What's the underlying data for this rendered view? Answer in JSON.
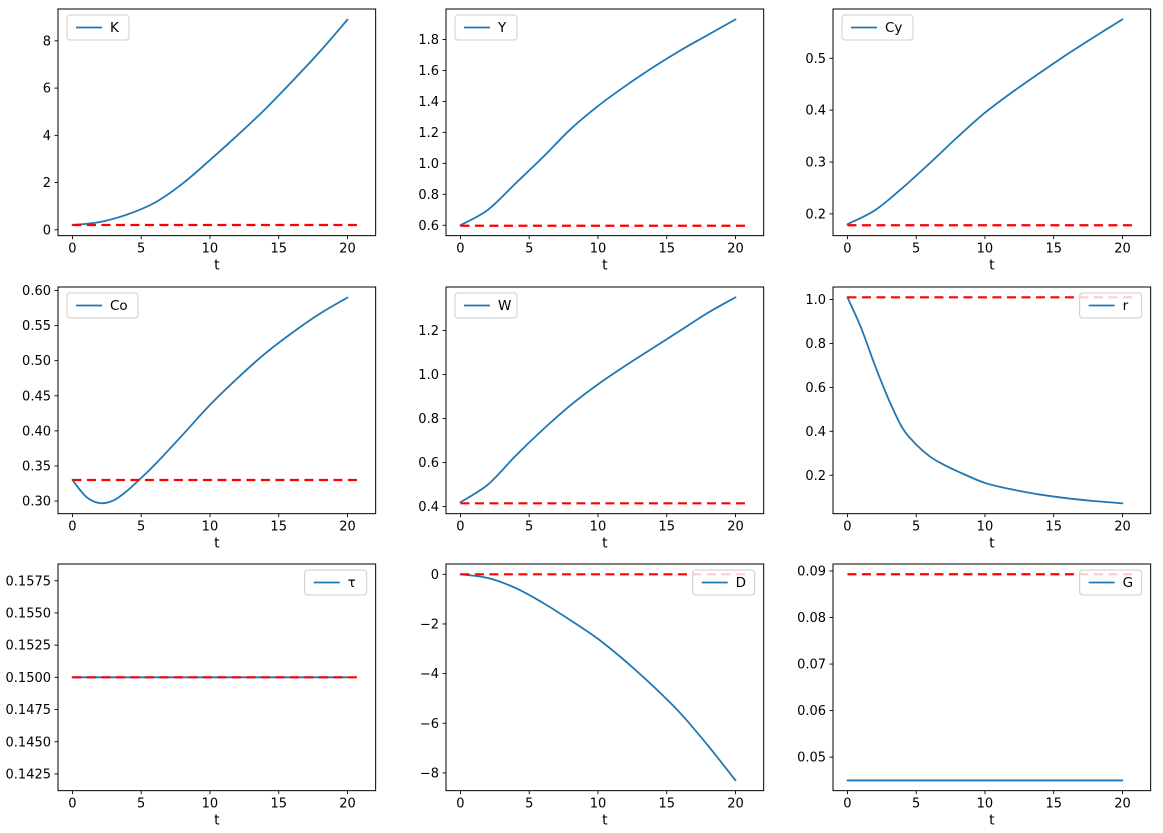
{
  "figure": {
    "background": "#ffffff",
    "grid": "3x3 subplots",
    "xlabel": "t"
  },
  "colors": {
    "series_line": "#1f77b4",
    "steady_state_line": "#ff0000",
    "axes_frame": "#000000",
    "legend_border": "#cccccc",
    "legend_fill": "rgba(255,255,255,0.8)",
    "text": "#000000"
  },
  "chart_data": [
    {
      "type": "line",
      "label": "K",
      "legend_position": "upper left",
      "xlabel": "t",
      "grid": false,
      "x": [
        0,
        2,
        4,
        6,
        8,
        10,
        12,
        14,
        16,
        18,
        20
      ],
      "y": [
        0.2,
        0.33,
        0.65,
        1.15,
        1.95,
        2.95,
        4.0,
        5.1,
        6.3,
        7.55,
        8.9
      ],
      "steady_value": 0.2,
      "steady_x": [
        0,
        21
      ],
      "xlim": [
        -1.05,
        22.05
      ],
      "ylim": [
        -0.25,
        9.35
      ],
      "xticks": [
        0,
        5,
        10,
        15,
        20
      ],
      "xtick_labels": [
        "0",
        "5",
        "10",
        "15",
        "20"
      ],
      "yticks": [
        0,
        2,
        4,
        6,
        8
      ],
      "ytick_labels": [
        "0",
        "2",
        "4",
        "6",
        "8"
      ]
    },
    {
      "type": "line",
      "label": "Y",
      "legend_position": "upper left",
      "xlabel": "t",
      "grid": false,
      "x": [
        0,
        2,
        4,
        6,
        8,
        10,
        12,
        14,
        16,
        18,
        20
      ],
      "y": [
        0.6,
        0.7,
        0.87,
        1.04,
        1.22,
        1.37,
        1.5,
        1.62,
        1.73,
        1.83,
        1.93
      ],
      "steady_value": 0.597,
      "steady_x": [
        0,
        21
      ],
      "xlim": [
        -1.05,
        22.05
      ],
      "ylim": [
        0.533,
        1.997
      ],
      "xticks": [
        0,
        5,
        10,
        15,
        20
      ],
      "xtick_labels": [
        "0",
        "5",
        "10",
        "15",
        "20"
      ],
      "yticks": [
        0.6,
        0.8,
        1.0,
        1.2,
        1.4,
        1.6,
        1.8
      ],
      "ytick_labels": [
        "0.6",
        "0.8",
        "1.0",
        "1.2",
        "1.4",
        "1.6",
        "1.8"
      ]
    },
    {
      "type": "line",
      "label": "Cy",
      "legend_position": "upper left",
      "xlabel": "t",
      "grid": false,
      "x": [
        0,
        2,
        4,
        6,
        8,
        10,
        12,
        14,
        16,
        18,
        20
      ],
      "y": [
        0.18,
        0.207,
        0.25,
        0.298,
        0.348,
        0.395,
        0.435,
        0.472,
        0.508,
        0.542,
        0.575
      ],
      "steady_value": 0.178,
      "steady_x": [
        0,
        21
      ],
      "xlim": [
        -1.05,
        22.05
      ],
      "ylim": [
        0.158,
        0.595
      ],
      "xticks": [
        0,
        5,
        10,
        15,
        20
      ],
      "xtick_labels": [
        "0",
        "5",
        "10",
        "15",
        "20"
      ],
      "yticks": [
        0.2,
        0.3,
        0.4,
        0.5
      ],
      "ytick_labels": [
        "0.2",
        "0.3",
        "0.4",
        "0.5"
      ]
    },
    {
      "type": "line",
      "label": "Co",
      "legend_position": "upper left",
      "xlabel": "t",
      "grid": false,
      "x": [
        0,
        1,
        2,
        3,
        4,
        5,
        6,
        8,
        10,
        12,
        14,
        16,
        18,
        20
      ],
      "y": [
        0.33,
        0.306,
        0.297,
        0.301,
        0.315,
        0.333,
        0.352,
        0.394,
        0.437,
        0.475,
        0.51,
        0.54,
        0.567,
        0.59
      ],
      "steady_value": 0.33,
      "steady_x": [
        0,
        21
      ],
      "xlim": [
        -1.05,
        22.05
      ],
      "ylim": [
        0.282,
        0.605
      ],
      "xticks": [
        0,
        5,
        10,
        15,
        20
      ],
      "xtick_labels": [
        "0",
        "5",
        "10",
        "15",
        "20"
      ],
      "yticks": [
        0.3,
        0.35,
        0.4,
        0.45,
        0.5,
        0.55,
        0.6
      ],
      "ytick_labels": [
        "0.30",
        "0.35",
        "0.40",
        "0.45",
        "0.50",
        "0.55",
        "0.60"
      ]
    },
    {
      "type": "line",
      "label": "W",
      "legend_position": "upper left",
      "xlabel": "t",
      "grid": false,
      "x": [
        0,
        2,
        4,
        6,
        8,
        10,
        12,
        14,
        16,
        18,
        20
      ],
      "y": [
        0.42,
        0.5,
        0.63,
        0.75,
        0.86,
        0.955,
        1.04,
        1.12,
        1.2,
        1.28,
        1.35
      ],
      "steady_value": 0.415,
      "steady_x": [
        0,
        21
      ],
      "xlim": [
        -1.05,
        22.05
      ],
      "ylim": [
        0.368,
        1.397
      ],
      "xticks": [
        0,
        5,
        10,
        15,
        20
      ],
      "xtick_labels": [
        "0",
        "5",
        "10",
        "15",
        "20"
      ],
      "yticks": [
        0.4,
        0.6,
        0.8,
        1.0,
        1.2
      ],
      "ytick_labels": [
        "0.4",
        "0.6",
        "0.8",
        "1.0",
        "1.2"
      ]
    },
    {
      "type": "line",
      "label": "r",
      "legend_position": "upper right",
      "xlabel": "t",
      "grid": false,
      "x": [
        0,
        1,
        2,
        3,
        4,
        5,
        6,
        7,
        8,
        10,
        12,
        14,
        16,
        18,
        20
      ],
      "y": [
        1.01,
        0.87,
        0.7,
        0.545,
        0.415,
        0.34,
        0.285,
        0.248,
        0.218,
        0.165,
        0.135,
        0.112,
        0.095,
        0.082,
        0.072
      ],
      "steady_value": 1.01,
      "steady_x": [
        0,
        21
      ],
      "xlim": [
        -1.05,
        22.05
      ],
      "ylim": [
        0.025,
        1.057
      ],
      "xticks": [
        0,
        5,
        10,
        15,
        20
      ],
      "xtick_labels": [
        "0",
        "5",
        "10",
        "15",
        "20"
      ],
      "yticks": [
        0.2,
        0.4,
        0.6,
        0.8,
        1.0
      ],
      "ytick_labels": [
        "0.2",
        "0.4",
        "0.6",
        "0.8",
        "1.0"
      ]
    },
    {
      "type": "line",
      "label": "τ",
      "legend_position": "upper right",
      "xlabel": "t",
      "grid": false,
      "x": [
        0,
        20
      ],
      "y": [
        0.15,
        0.15
      ],
      "steady_value": 0.15,
      "steady_x": [
        0,
        21
      ],
      "xlim": [
        -1.05,
        22.05
      ],
      "ylim": [
        0.1412,
        0.1588
      ],
      "xticks": [
        0,
        5,
        10,
        15,
        20
      ],
      "xtick_labels": [
        "0",
        "5",
        "10",
        "15",
        "20"
      ],
      "yticks": [
        0.1425,
        0.145,
        0.1475,
        0.15,
        0.1525,
        0.155,
        0.1575
      ],
      "ytick_labels": [
        "0.1425",
        "0.1450",
        "0.1475",
        "0.1500",
        "0.1525",
        "0.1550",
        "0.1575"
      ]
    },
    {
      "type": "line",
      "label": "D",
      "legend_position": "upper right",
      "xlabel": "t",
      "grid": false,
      "x": [
        0,
        2,
        4,
        6,
        8,
        10,
        12,
        14,
        16,
        18,
        20
      ],
      "y": [
        0.0,
        -0.15,
        -0.55,
        -1.15,
        -1.85,
        -2.6,
        -3.5,
        -4.5,
        -5.6,
        -6.9,
        -8.3
      ],
      "steady_value": 0.0,
      "steady_x": [
        0,
        21
      ],
      "xlim": [
        -1.05,
        22.05
      ],
      "ylim": [
        -8.715,
        0.415
      ],
      "xticks": [
        0,
        5,
        10,
        15,
        20
      ],
      "xtick_labels": [
        "0",
        "5",
        "10",
        "15",
        "20"
      ],
      "yticks": [
        -8,
        -6,
        -4,
        -2,
        0
      ],
      "ytick_labels": [
        "−8",
        "−6",
        "−4",
        "−2",
        "0"
      ]
    },
    {
      "type": "line",
      "label": "G",
      "legend_position": "upper right",
      "xlabel": "t",
      "grid": false,
      "x": [
        0,
        20
      ],
      "y": [
        0.045,
        0.045
      ],
      "steady_value": 0.0893,
      "steady_x": [
        0,
        21
      ],
      "xlim": [
        -1.05,
        22.05
      ],
      "ylim": [
        0.0428,
        0.0915
      ],
      "xticks": [
        0,
        5,
        10,
        15,
        20
      ],
      "xtick_labels": [
        "0",
        "5",
        "10",
        "15",
        "20"
      ],
      "yticks": [
        0.05,
        0.06,
        0.07,
        0.08,
        0.09
      ],
      "ytick_labels": [
        "0.05",
        "0.06",
        "0.07",
        "0.08",
        "0.09"
      ]
    }
  ]
}
